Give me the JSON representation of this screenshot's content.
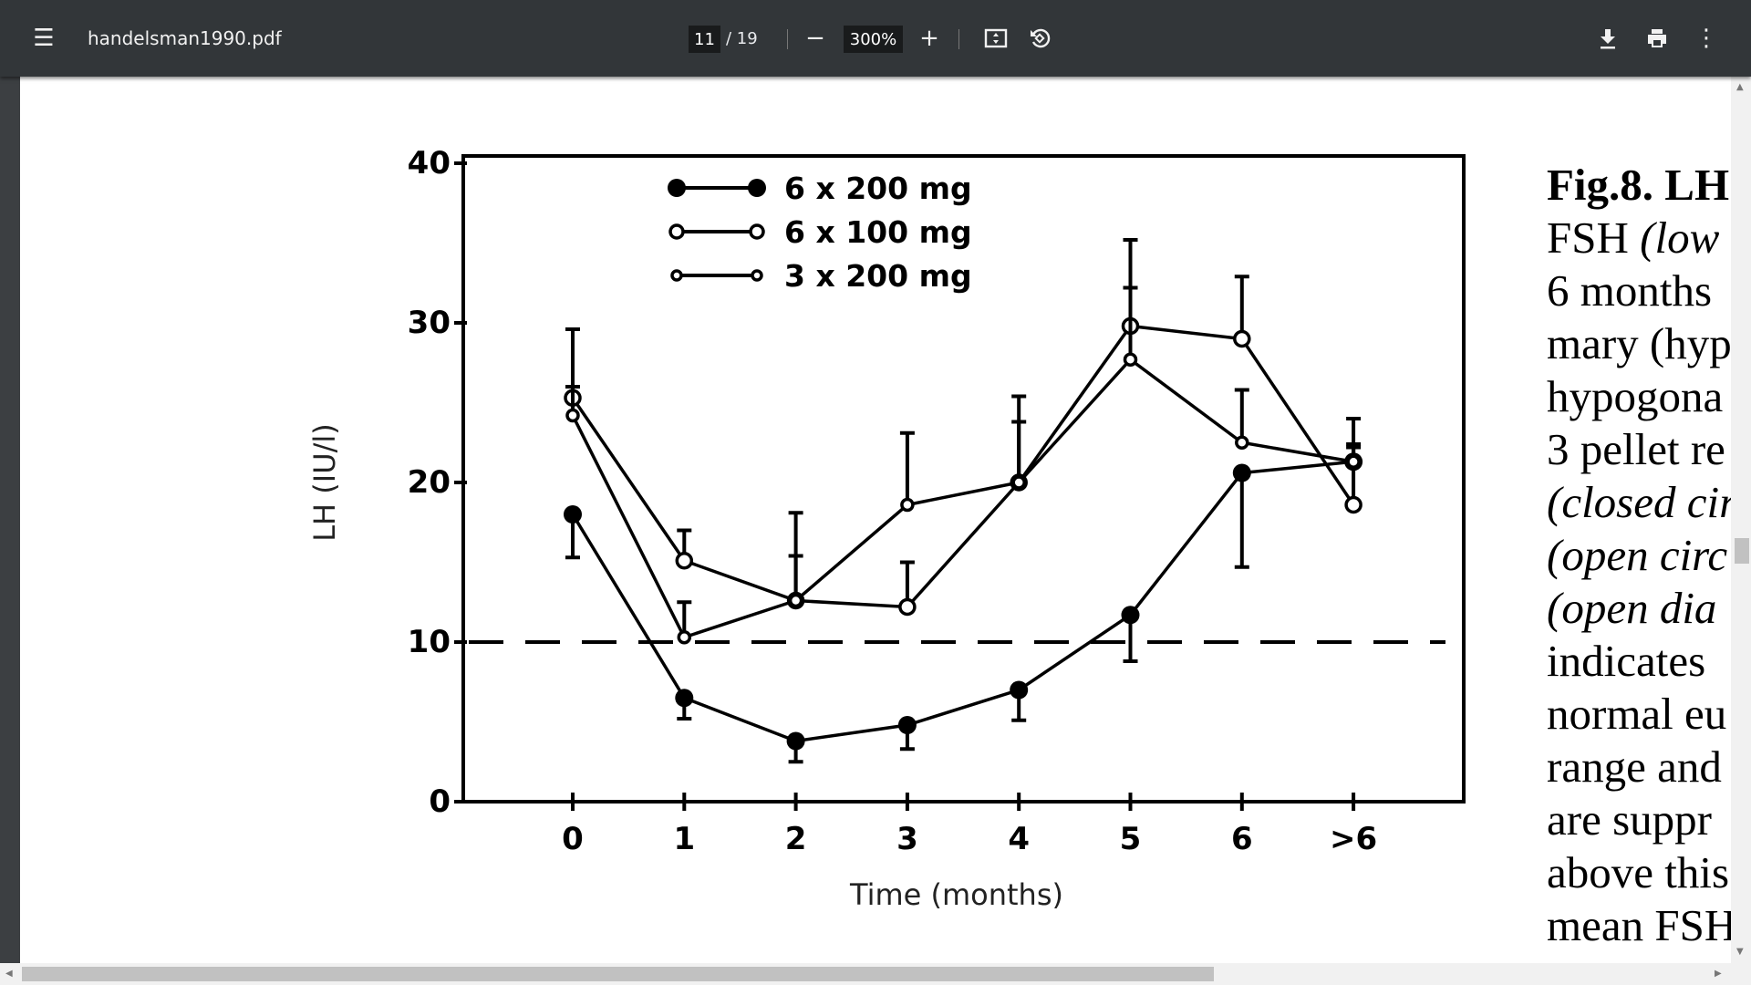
{
  "toolbar": {
    "menu_icon": "hamburger-menu-icon",
    "file_name": "handelsman1990.pdf",
    "current_page": "11",
    "total_pages": "/ 19",
    "zoom_level": "300%",
    "icons": [
      "zoom-out-icon",
      "zoom-in-icon",
      "fit-page-icon",
      "rotate-icon",
      "download-icon",
      "print-icon",
      "more-vert-icon"
    ]
  },
  "caption": {
    "lines": [
      {
        "text": "Fig.8.  LH",
        "style": "b"
      },
      {
        "text": "FSH ",
        "rest": "(low",
        "rest_style": "i"
      },
      {
        "text": "6 months"
      },
      {
        "text": "mary (hyp"
      },
      {
        "text": "hypogona"
      },
      {
        "text": "3 pellet re"
      },
      {
        "text": "(closed cir",
        "style": "i"
      },
      {
        "text": "(open circ",
        "style": "i"
      },
      {
        "text": "(open dia",
        "style": "i"
      },
      {
        "text": "indicates"
      },
      {
        "text": "normal eu"
      },
      {
        "text": "range and"
      },
      {
        "text": "are suppr"
      },
      {
        "text": "above this"
      },
      {
        "text": "mean FSH"
      }
    ]
  },
  "chart_data": {
    "type": "line",
    "xlabel": "Time (months)",
    "ylabel": "LH (IU/l)",
    "categories": [
      "0",
      "1",
      "2",
      "3",
      "4",
      "5",
      "6",
      ">6"
    ],
    "yticks": [
      "0",
      "10",
      "20",
      "30",
      "40"
    ],
    "ylim": [
      0,
      40
    ],
    "reference_line": {
      "y": 10,
      "style": "dashed"
    },
    "legend_placement": "top-left",
    "series": [
      {
        "name": "6 x 200 mg",
        "marker": "filled-circle",
        "values": [
          18,
          6.5,
          3.8,
          4.8,
          7,
          11.7,
          20.6,
          21.3
        ],
        "error_to": [
          15.3,
          5.2,
          2.5,
          3.3,
          5.1,
          8.8,
          14.7,
          22.4
        ]
      },
      {
        "name": "6 x 100 mg",
        "marker": "open-circle",
        "values": [
          25.3,
          15.1,
          12.6,
          12.2,
          20,
          29.8,
          29,
          18.6
        ],
        "error_to": [
          29.6,
          17,
          15.4,
          15,
          23.8,
          35.2,
          32.9,
          22.2
        ]
      },
      {
        "name": "3 x 200 mg",
        "marker": "small-open-circle",
        "values": [
          24.2,
          10.3,
          12.6,
          18.6,
          20,
          27.7,
          22.5,
          21.3
        ],
        "error_to": [
          26,
          12.5,
          18.1,
          23.1,
          25.4,
          32.2,
          25.8,
          24
        ]
      }
    ]
  }
}
